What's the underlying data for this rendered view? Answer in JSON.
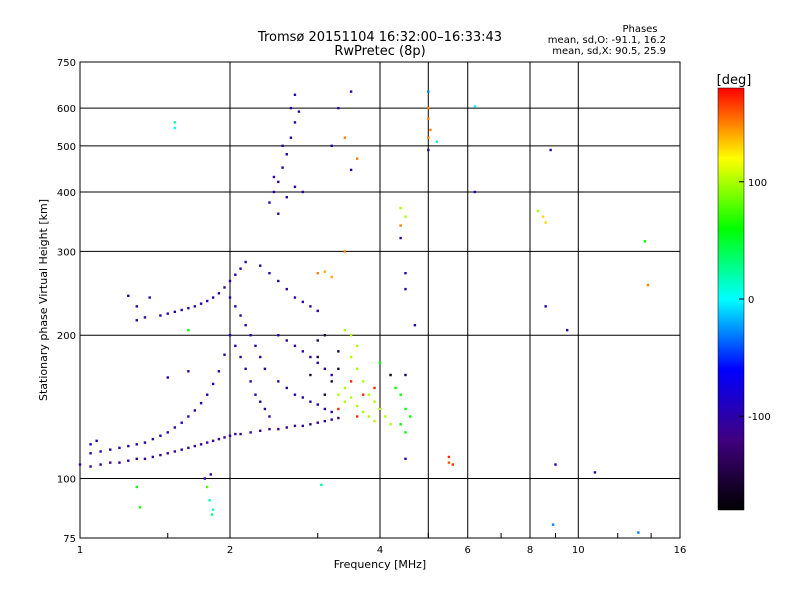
{
  "chart_data": {
    "type": "scatter",
    "title": "Tromsø 20151104 16:32:00–16:33:43",
    "subtitle": "RwPretec (8p)",
    "xlabel": "Frequency [MHz]",
    "ylabel": "Stationary phase Virtual Height [km]",
    "x_scale": "log",
    "y_scale": "log",
    "xlim": [
      1,
      16
    ],
    "ylim": [
      75,
      750
    ],
    "x_ticks": [
      1,
      2,
      4,
      6,
      8,
      10,
      16
    ],
    "y_ticks": [
      75,
      100,
      200,
      300,
      400,
      500,
      600,
      750
    ],
    "grid": true,
    "stats": {
      "title": "Phases",
      "line1": "mean, sd,O: -91.1, 16.2",
      "line2": "mean, sd,X:  90.5, 25.9"
    },
    "colorbar": {
      "label": "[deg]",
      "range": [
        -180,
        180
      ],
      "ticks": [
        100,
        0,
        -100
      ],
      "colormap": [
        "#000000",
        "#400080",
        "#0000ff",
        "#00ffff",
        "#00ff00",
        "#ffff00",
        "#ff0000"
      ]
    },
    "series": [
      {
        "points": [
          [
            1.0,
            107,
            -110
          ],
          [
            1.05,
            106,
            -110
          ],
          [
            1.1,
            107,
            -110
          ],
          [
            1.15,
            108,
            -110
          ],
          [
            1.2,
            108,
            -110
          ],
          [
            1.25,
            109,
            -110
          ],
          [
            1.3,
            110,
            -110
          ],
          [
            1.35,
            110,
            -110
          ],
          [
            1.4,
            111,
            -110
          ],
          [
            1.45,
            112,
            -110
          ],
          [
            1.5,
            113,
            -110
          ],
          [
            1.55,
            114,
            -110
          ],
          [
            1.6,
            115,
            -110
          ],
          [
            1.65,
            116,
            -110
          ],
          [
            1.7,
            117,
            -110
          ],
          [
            1.75,
            118,
            -110
          ],
          [
            1.8,
            119,
            -110
          ],
          [
            1.85,
            120,
            -110
          ],
          [
            1.9,
            121,
            -110
          ],
          [
            1.95,
            122,
            -110
          ],
          [
            2.0,
            123,
            -110
          ],
          [
            2.05,
            124,
            -110
          ],
          [
            2.1,
            124,
            -110
          ],
          [
            2.2,
            125,
            -110
          ],
          [
            2.3,
            126,
            -110
          ],
          [
            2.4,
            127,
            -110
          ],
          [
            2.5,
            127,
            -110
          ],
          [
            2.6,
            128,
            -110
          ],
          [
            2.7,
            129,
            -110
          ],
          [
            2.8,
            129,
            -110
          ],
          [
            2.9,
            130,
            -110
          ],
          [
            3.0,
            131,
            -110
          ],
          [
            3.1,
            132,
            -110
          ],
          [
            3.2,
            133,
            -110
          ],
          [
            3.3,
            134,
            -110
          ],
          [
            1.05,
            113,
            -100
          ],
          [
            1.1,
            114,
            -100
          ],
          [
            1.15,
            115,
            -100
          ],
          [
            1.2,
            116,
            -100
          ],
          [
            1.25,
            117,
            -100
          ],
          [
            1.3,
            118,
            -100
          ],
          [
            1.35,
            119,
            -100
          ],
          [
            1.4,
            121,
            -100
          ],
          [
            1.45,
            123,
            -100
          ],
          [
            1.5,
            125,
            -100
          ],
          [
            1.55,
            128,
            -100
          ],
          [
            1.6,
            131,
            -100
          ],
          [
            1.65,
            135,
            -100
          ],
          [
            1.7,
            139,
            -100
          ],
          [
            1.75,
            144,
            -100
          ],
          [
            1.8,
            150,
            -100
          ],
          [
            1.85,
            158,
            -100
          ],
          [
            1.9,
            168,
            -100
          ],
          [
            1.95,
            182,
            -100
          ],
          [
            1.45,
            220,
            -100
          ],
          [
            1.5,
            222,
            -100
          ],
          [
            1.55,
            224,
            -100
          ],
          [
            1.6,
            226,
            -100
          ],
          [
            1.65,
            228,
            -100
          ],
          [
            1.7,
            230,
            -100
          ],
          [
            1.75,
            233,
            -100
          ],
          [
            1.8,
            236,
            -100
          ],
          [
            1.85,
            240,
            -100
          ],
          [
            1.9,
            245,
            -100
          ],
          [
            1.95,
            252,
            -100
          ],
          [
            2.0,
            260,
            -100
          ],
          [
            2.05,
            268,
            -100
          ],
          [
            2.1,
            276,
            -100
          ],
          [
            2.15,
            285,
            -100
          ],
          [
            1.3,
            215,
            -100
          ],
          [
            1.35,
            218,
            -100
          ],
          [
            1.38,
            240,
            -100
          ],
          [
            2.0,
            200,
            -100
          ],
          [
            2.05,
            190,
            -100
          ],
          [
            2.1,
            180,
            -100
          ],
          [
            2.15,
            170,
            -100
          ],
          [
            2.2,
            160,
            -100
          ],
          [
            2.25,
            150,
            -100
          ],
          [
            2.3,
            145,
            -100
          ],
          [
            2.35,
            140,
            -100
          ],
          [
            2.4,
            135,
            -100
          ],
          [
            2.0,
            240,
            -100
          ],
          [
            2.05,
            230,
            -100
          ],
          [
            2.1,
            220,
            -100
          ],
          [
            2.15,
            210,
            -100
          ],
          [
            2.2,
            200,
            -100
          ],
          [
            2.25,
            190,
            -100
          ],
          [
            2.3,
            180,
            -100
          ],
          [
            2.35,
            170,
            -100
          ],
          [
            2.4,
            380,
            -100
          ],
          [
            2.45,
            400,
            -100
          ],
          [
            2.5,
            420,
            -100
          ],
          [
            2.55,
            450,
            -100
          ],
          [
            2.6,
            480,
            -100
          ],
          [
            2.65,
            520,
            -100
          ],
          [
            2.7,
            560,
            -100
          ],
          [
            2.75,
            590,
            -100
          ],
          [
            2.5,
            360,
            -100
          ],
          [
            2.6,
            390,
            -100
          ],
          [
            2.7,
            410,
            -100
          ],
          [
            2.8,
            400,
            -100
          ],
          [
            2.45,
            430,
            -100
          ],
          [
            2.55,
            500,
            -100
          ],
          [
            2.65,
            600,
            -100
          ],
          [
            2.7,
            640,
            -100
          ],
          [
            2.5,
            260,
            -100
          ],
          [
            2.6,
            250,
            -100
          ],
          [
            2.7,
            240,
            -100
          ],
          [
            2.8,
            235,
            -100
          ],
          [
            2.9,
            230,
            -100
          ],
          [
            3.0,
            225,
            -100
          ],
          [
            2.4,
            270,
            -100
          ],
          [
            2.3,
            280,
            -100
          ],
          [
            2.5,
            200,
            -100
          ],
          [
            2.6,
            195,
            -100
          ],
          [
            2.7,
            190,
            -100
          ],
          [
            2.8,
            185,
            -100
          ],
          [
            2.9,
            180,
            -100
          ],
          [
            3.0,
            175,
            -100
          ],
          [
            3.1,
            170,
            -100
          ],
          [
            3.2,
            165,
            -100
          ],
          [
            2.5,
            160,
            -100
          ],
          [
            2.6,
            155,
            -100
          ],
          [
            2.7,
            150,
            -100
          ],
          [
            2.8,
            148,
            -100
          ],
          [
            2.9,
            145,
            -100
          ],
          [
            3.0,
            143,
            -100
          ],
          [
            3.1,
            140,
            -100
          ],
          [
            3.2,
            138,
            -100
          ],
          [
            1.05,
            118,
            -90
          ],
          [
            1.08,
            120,
            -90
          ],
          [
            1.25,
            242,
            -100
          ],
          [
            1.3,
            230,
            -100
          ],
          [
            1.65,
            168,
            -100
          ],
          [
            1.5,
            163,
            -100
          ],
          [
            3.3,
            600,
            -100
          ],
          [
            3.2,
            500,
            -100
          ],
          [
            3.5,
            650,
            -100
          ],
          [
            4.5,
            270,
            -100
          ],
          [
            4.5,
            250,
            -100
          ],
          [
            4.4,
            320,
            -100
          ],
          [
            5.0,
            490,
            -100
          ],
          [
            6.2,
            400,
            -100
          ],
          [
            8.8,
            490,
            -100
          ],
          [
            8.6,
            230,
            -100
          ],
          [
            9.5,
            205,
            -100
          ],
          [
            9.0,
            107,
            -100
          ],
          [
            10.8,
            103,
            -100
          ],
          [
            4.7,
            210,
            -100
          ],
          [
            4.5,
            110,
            -100
          ],
          [
            4.0,
            140,
            -100
          ],
          [
            3.5,
            445,
            -100
          ],
          [
            1.83,
            102,
            -100
          ],
          [
            1.78,
            100,
            -100
          ],
          [
            1.55,
            560,
            20
          ],
          [
            1.55,
            545,
            0
          ],
          [
            1.82,
            90,
            20
          ],
          [
            1.85,
            86,
            10
          ],
          [
            1.84,
            84,
            30
          ],
          [
            1.8,
            96,
            80
          ],
          [
            1.3,
            96,
            60
          ],
          [
            1.32,
            87,
            60
          ],
          [
            1.65,
            205,
            60
          ],
          [
            3.05,
            97,
            20
          ],
          [
            6.2,
            605,
            0
          ],
          [
            8.9,
            80,
            -30
          ],
          [
            13.2,
            77,
            -30
          ],
          [
            13.6,
            315,
            60
          ],
          [
            3.0,
            270,
            150
          ],
          [
            3.1,
            272,
            140
          ],
          [
            3.2,
            265,
            140
          ],
          [
            3.4,
            205,
            100
          ],
          [
            3.5,
            200,
            100
          ],
          [
            3.6,
            190,
            100
          ],
          [
            3.5,
            180,
            100
          ],
          [
            3.6,
            170,
            100
          ],
          [
            3.7,
            160,
            100
          ],
          [
            3.8,
            150,
            100
          ],
          [
            3.9,
            145,
            100
          ],
          [
            4.0,
            140,
            100
          ],
          [
            4.1,
            135,
            100
          ],
          [
            4.2,
            130,
            100
          ],
          [
            3.4,
            155,
            100
          ],
          [
            3.5,
            148,
            100
          ],
          [
            3.6,
            142,
            100
          ],
          [
            3.7,
            138,
            100
          ],
          [
            3.8,
            135,
            100
          ],
          [
            3.9,
            132,
            100
          ],
          [
            3.3,
            150,
            100
          ],
          [
            3.4,
            145,
            100
          ],
          [
            4.0,
            175,
            60
          ],
          [
            4.2,
            165,
            60
          ],
          [
            4.3,
            155,
            60
          ],
          [
            4.4,
            150,
            60
          ],
          [
            4.5,
            140,
            60
          ],
          [
            4.6,
            135,
            60
          ],
          [
            4.4,
            130,
            60
          ],
          [
            4.5,
            125,
            60
          ],
          [
            3.4,
            520,
            150
          ],
          [
            3.6,
            470,
            150
          ],
          [
            3.4,
            300,
            150
          ],
          [
            3.5,
            160,
            170
          ],
          [
            3.7,
            150,
            170
          ],
          [
            3.9,
            155,
            170
          ],
          [
            3.3,
            140,
            170
          ],
          [
            3.6,
            135,
            170
          ],
          [
            4.4,
            340,
            150
          ],
          [
            4.4,
            370,
            100
          ],
          [
            4.5,
            355,
            100
          ],
          [
            5.0,
            600,
            150
          ],
          [
            5.0,
            570,
            150
          ],
          [
            5.0,
            520,
            150
          ],
          [
            5.05,
            540,
            150
          ],
          [
            5.2,
            510,
            10
          ],
          [
            5.0,
            650,
            -30
          ],
          [
            8.3,
            365,
            100
          ],
          [
            8.5,
            355,
            130
          ],
          [
            8.6,
            345,
            130
          ],
          [
            13.8,
            255,
            150
          ],
          [
            5.6,
            107,
            170
          ],
          [
            5.5,
            111,
            170
          ],
          [
            5.5,
            108,
            160
          ],
          [
            4.2,
            165,
            -150
          ],
          [
            4.5,
            165,
            -150
          ],
          [
            3.0,
            195,
            -150
          ],
          [
            3.1,
            200,
            -150
          ],
          [
            3.3,
            185,
            -150
          ],
          [
            3.0,
            180,
            -150
          ],
          [
            3.2,
            160,
            -150
          ],
          [
            3.1,
            150,
            -150
          ],
          [
            2.9,
            165,
            -150
          ],
          [
            3.3,
            170,
            -150
          ]
        ]
      }
    ]
  }
}
